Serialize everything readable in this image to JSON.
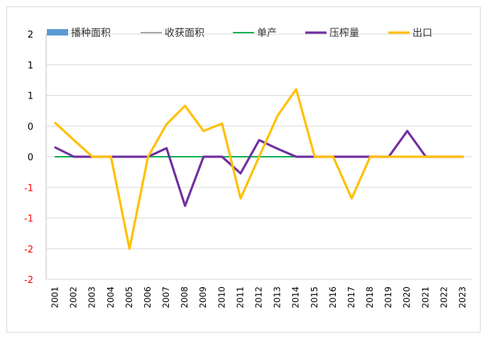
{
  "chart_data": {
    "type": "line",
    "title": "",
    "xlabel": "",
    "ylabel": "",
    "categories": [
      "2001",
      "2002",
      "2003",
      "2004",
      "2005",
      "2006",
      "2007",
      "2008",
      "2009",
      "2010",
      "2011",
      "2012",
      "2013",
      "2014",
      "2015",
      "2016",
      "2017",
      "2018",
      "2019",
      "2020",
      "2021",
      "2022",
      "2023"
    ],
    "ylim": [
      -2,
      2
    ],
    "y_tick_values": [
      2,
      1.5,
      1,
      0.5,
      0,
      -0.5,
      -1,
      -1.5,
      -2
    ],
    "y_tick_labels": [
      "2",
      "1",
      "1",
      "0",
      "0",
      "-1",
      "-1",
      "-2",
      "-2"
    ],
    "y_tick_colors": [
      "#000000",
      "#000000",
      "#000000",
      "#000000",
      "#000000",
      "#ff0000",
      "#ff0000",
      "#ff0000",
      "#ff0000"
    ],
    "grid": true,
    "legend_position": "top",
    "series": [
      {
        "name": "播种面积",
        "kind": "bar",
        "color": "#5b9bd5",
        "values": [
          0,
          0,
          0,
          0,
          0,
          0,
          0,
          0,
          0,
          0,
          0,
          0,
          0,
          0,
          0,
          0,
          0,
          0,
          0,
          0,
          0,
          0,
          0
        ]
      },
      {
        "name": "收获面积",
        "kind": "line",
        "color": "#a5a5a5",
        "values": [
          0,
          0,
          0,
          0,
          0,
          0,
          0,
          0,
          0,
          0,
          0,
          0,
          0,
          0,
          0,
          0,
          0,
          0,
          0,
          0,
          0,
          0,
          0
        ]
      },
      {
        "name": "单产",
        "kind": "line",
        "color": "#00b050",
        "values": [
          0,
          0,
          0,
          0,
          0,
          0,
          0,
          0,
          0,
          0,
          0,
          0,
          0,
          0,
          0,
          0,
          0,
          0,
          0,
          0,
          0,
          0,
          0
        ]
      },
      {
        "name": "压榨量",
        "kind": "line",
        "color": "#7030a0",
        "values": [
          0.15,
          0,
          0,
          0,
          0,
          0,
          0.14,
          -0.8,
          0,
          0,
          -0.27,
          0.27,
          0.13,
          0,
          0,
          0,
          0,
          0,
          0,
          0.42,
          0,
          0,
          0
        ]
      },
      {
        "name": "出口",
        "kind": "line",
        "color": "#ffc000",
        "values": [
          0.55,
          0.27,
          0,
          0,
          -1.5,
          0,
          0.53,
          0.83,
          0.42,
          0.54,
          -0.68,
          0,
          0.67,
          1.1,
          0,
          0,
          -0.68,
          0,
          0,
          0,
          0,
          0,
          0
        ]
      }
    ]
  }
}
